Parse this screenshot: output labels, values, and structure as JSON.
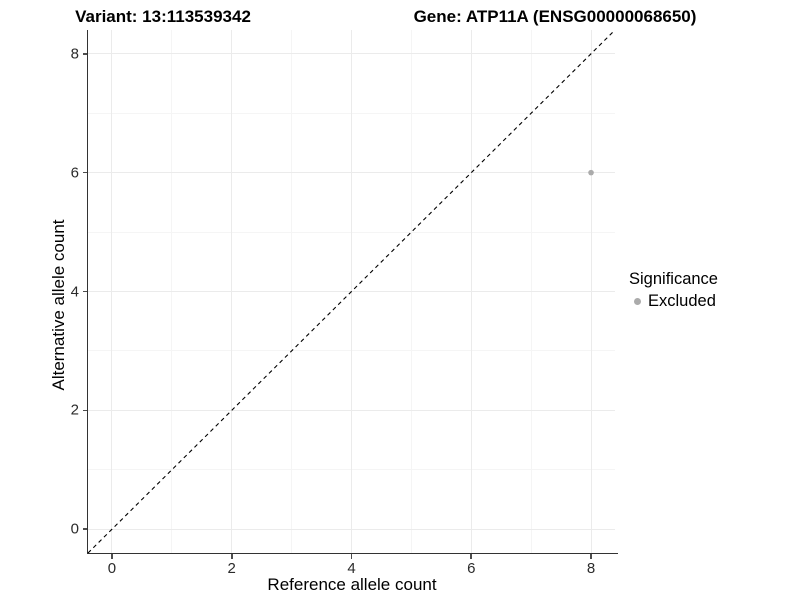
{
  "chart_data": {
    "type": "scatter",
    "title_left": "Variant: 13:113539342",
    "title_right": "Gene: ATP11A (ENSG00000068650)",
    "xlabel": "Reference allele count",
    "ylabel": "Alternative allele count",
    "xlim": [
      -0.4,
      8.4
    ],
    "ylim": [
      -0.4,
      8.4
    ],
    "xticks": [
      0,
      2,
      4,
      6,
      8
    ],
    "yticks": [
      0,
      2,
      4,
      6,
      8
    ],
    "xticks_minor": [
      1,
      3,
      5,
      7
    ],
    "yticks_minor": [
      1,
      3,
      5,
      7
    ],
    "grid": "major+minor",
    "series": [
      {
        "name": "Excluded",
        "marker": "circle",
        "color": "#ababab",
        "size": 2.8,
        "points": [
          [
            8,
            6
          ]
        ]
      }
    ],
    "reference_line": {
      "label": "identity-line y=x",
      "from": [
        -0.4,
        -0.4
      ],
      "to": [
        8.4,
        8.4
      ],
      "style": "dashed",
      "color": "#000000"
    },
    "legend": {
      "title": "Significance",
      "position": "right",
      "entries": [
        {
          "label": "Excluded",
          "color": "#ababab"
        }
      ]
    }
  },
  "colors": {
    "background": "#ffffff",
    "grid_major": "#ebebeb",
    "grid_minor": "#f5f5f5",
    "axis_line": "#333333",
    "tick": "#4d4d4d",
    "tick_label": "#2b2b2b",
    "text": "#000000"
  }
}
